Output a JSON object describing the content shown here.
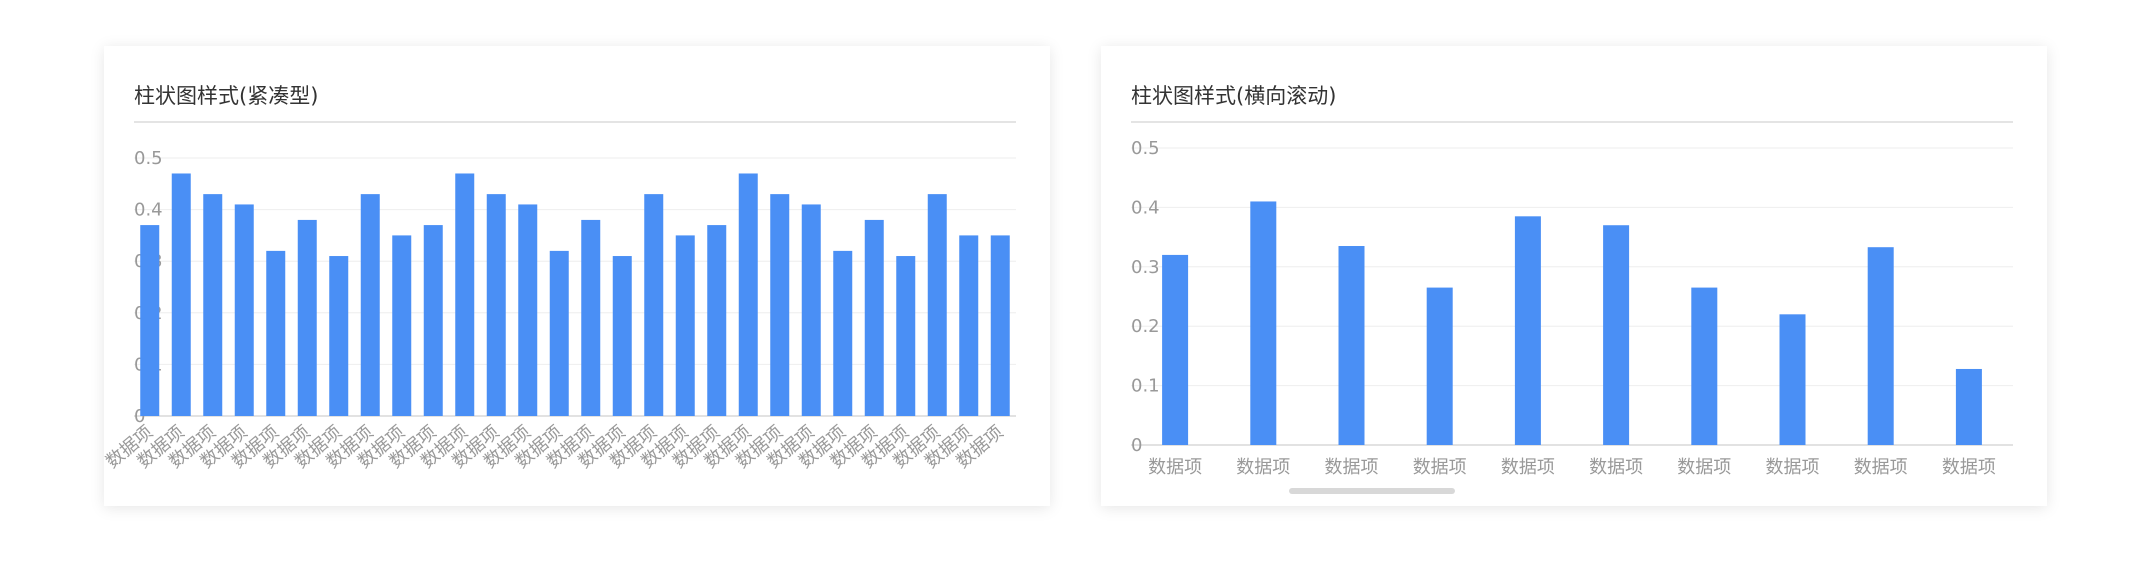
{
  "charts": [
    {
      "title": "柱状图样式(紧凑型)",
      "chart_data": {
        "type": "bar",
        "title": "柱状图样式(紧凑型)",
        "xlabel": "",
        "ylabel": "",
        "ylim": [
          0,
          0.5
        ],
        "yticks": [
          "0",
          "0.1",
          "0.2",
          "0.3",
          "0.4",
          "0.5"
        ],
        "grid": true,
        "tick_rotation": "-45deg",
        "categories": [
          "数据项",
          "数据项",
          "数据项",
          "数据项",
          "数据项",
          "数据项",
          "数据项",
          "数据项",
          "数据项",
          "数据项",
          "数据项",
          "数据项",
          "数据项",
          "数据项",
          "数据项",
          "数据项",
          "数据项",
          "数据项",
          "数据项",
          "数据项",
          "数据项",
          "数据项",
          "数据项",
          "数据项",
          "数据项",
          "数据项",
          "数据项",
          "数据项"
        ],
        "values": [
          0.37,
          0.47,
          0.43,
          0.41,
          0.32,
          0.38,
          0.31,
          0.43,
          0.35,
          0.37,
          0.47,
          0.43,
          0.41,
          0.32,
          0.38,
          0.31,
          0.43,
          0.35,
          0.37,
          0.47,
          0.43,
          0.41,
          0.32,
          0.38,
          0.31,
          0.43,
          0.35,
          0.35
        ],
        "bar_color": "#4a8ff5"
      }
    },
    {
      "title": "柱状图样式(横向滚动)",
      "chart_data": {
        "type": "bar",
        "title": "柱状图样式(横向滚动)",
        "xlabel": "",
        "ylabel": "",
        "ylim": [
          0,
          0.5
        ],
        "yticks": [
          "0",
          "0.1",
          "0.2",
          "0.3",
          "0.4",
          "0.5"
        ],
        "grid": true,
        "horizontal_scroll": true,
        "categories": [
          "数据项",
          "数据项",
          "数据项",
          "数据项",
          "数据项",
          "数据项",
          "数据项",
          "数据项",
          "数据项",
          "数据项"
        ],
        "values": [
          0.32,
          0.41,
          0.335,
          0.265,
          0.385,
          0.37,
          0.265,
          0.22,
          0.333,
          0.128
        ],
        "bar_color": "#4a8ff5"
      }
    }
  ],
  "colors": {
    "bar": "#4a8ff5",
    "grid": "#eeeeee",
    "axis": "#d9d9d9",
    "tick_text": "#999999",
    "title_text": "#333333"
  }
}
